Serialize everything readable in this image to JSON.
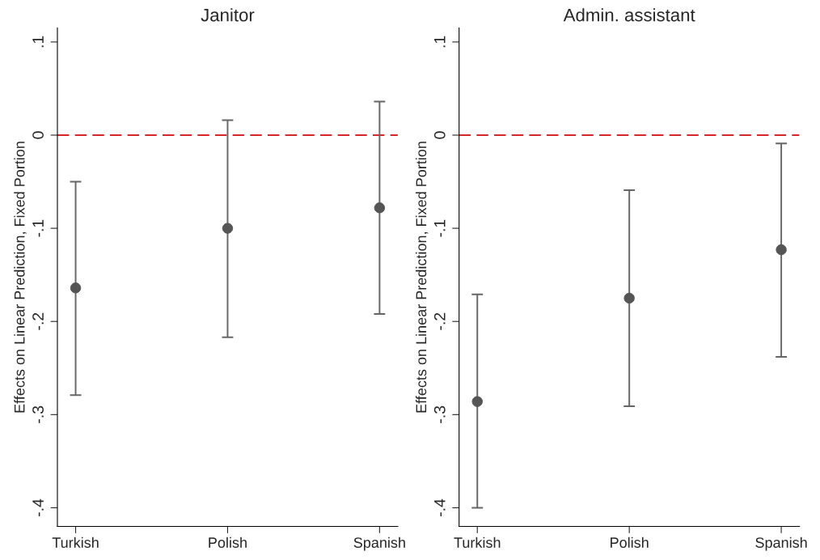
{
  "chart_data": [
    {
      "type": "scatter",
      "title": "Janitor",
      "ylabel": "Effects on Linear Prediction, Fixed Portion",
      "categories": [
        "Turkish",
        "Polish",
        "Spanish"
      ],
      "ylim": [
        -0.42,
        0.115
      ],
      "yticks": [
        {
          "value": 0.1,
          "label": ".1"
        },
        {
          "value": 0,
          "label": "0"
        },
        {
          "value": -0.1,
          "label": "-.1"
        },
        {
          "value": -0.2,
          "label": "-.2"
        },
        {
          "value": -0.3,
          "label": "-.3"
        },
        {
          "value": -0.4,
          "label": "-.4"
        }
      ],
      "grid": false,
      "marker": "circle",
      "legend": false,
      "series": [
        {
          "color": "#555555",
          "values": [
            -0.164,
            -0.1,
            -0.078
          ],
          "errors": [
            [
              -0.279,
              -0.05
            ],
            [
              -0.217,
              0.016
            ],
            [
              -0.192,
              0.036
            ]
          ]
        }
      ],
      "ref_lines": [
        {
          "axis": "y",
          "value": 0,
          "color": "#d62728",
          "line_style": "dashed"
        }
      ]
    },
    {
      "type": "scatter",
      "title": "Admin. assistant",
      "ylabel": "Effects on Linear Prediction, Fixed Portion",
      "categories": [
        "Turkish",
        "Polish",
        "Spanish"
      ],
      "ylim": [
        -0.42,
        0.115
      ],
      "yticks": [
        {
          "value": 0.1,
          "label": ".1"
        },
        {
          "value": 0,
          "label": "0"
        },
        {
          "value": -0.1,
          "label": "-.1"
        },
        {
          "value": -0.2,
          "label": "-.2"
        },
        {
          "value": -0.3,
          "label": "-.3"
        },
        {
          "value": -0.4,
          "label": "-.4"
        }
      ],
      "grid": false,
      "marker": "circle",
      "legend": false,
      "series": [
        {
          "color": "#555555",
          "values": [
            -0.286,
            -0.175,
            -0.123
          ],
          "errors": [
            [
              -0.4,
              -0.171
            ],
            [
              -0.291,
              -0.059
            ],
            [
              -0.238,
              -0.009
            ]
          ]
        }
      ],
      "ref_lines": [
        {
          "axis": "y",
          "value": 0,
          "color": "#d62728",
          "line_style": "dashed"
        }
      ]
    }
  ]
}
